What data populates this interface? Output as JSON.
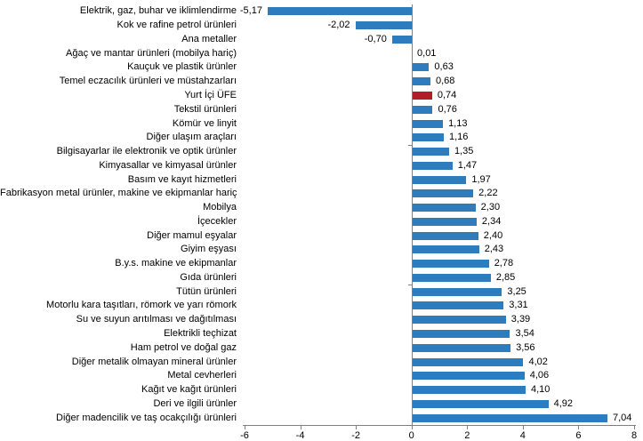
{
  "chart_data": {
    "type": "bar",
    "orientation": "horizontal",
    "title": "",
    "xlabel": "",
    "ylabel": "",
    "xlim": [
      -6,
      8
    ],
    "x_ticks": [
      -6,
      -4,
      -2,
      0,
      2,
      4,
      6,
      8
    ],
    "x_tick_labels": [
      "-6",
      "-4",
      "-2",
      "0",
      "2",
      "4",
      "6",
      "8"
    ],
    "grid": false,
    "legend": "none",
    "bar_color": "#2d7cbd",
    "highlight_color": "#b01e28",
    "axis_color": "#808080",
    "text_color": "#000000",
    "highlight_category": "Yurt İçi ÜFE",
    "category_axis_tick_interval": 10,
    "categories": [
      "Elektrik, gaz, buhar ve iklimlendirme",
      "Kok ve rafine petrol ürünleri",
      "Ana metaller",
      "Ağaç ve mantar ürünleri (mobilya hariç)",
      "Kauçuk ve plastik ürünler",
      "Temel eczacılık ürünleri ve müstahzarları",
      "Yurt İçi ÜFE",
      "Tekstil ürünleri",
      "Kömür ve linyit",
      "Diğer ulaşım araçları",
      "Bilgisayarlar ile elektronik ve optik ürünler",
      "Kimyasallar ve kimyasal ürünler",
      "Basım ve kayıt hizmetleri",
      "Fabrikasyon metal ürünler, makine ve ekipmanlar hariç",
      "Mobilya",
      "İçecekler",
      "Diğer mamul eşyalar",
      "Giyim eşyası",
      "B.y.s. makine ve ekipmanlar",
      "Gıda ürünleri",
      "Tütün ürünleri",
      "Motorlu kara taşıtları, römork ve yarı römork",
      "Su ve suyun arıtılması ve dağıtılması",
      "Elektrikli teçhizat",
      "Ham petrol ve doğal gaz",
      "Diğer metalik olmayan mineral ürünler",
      "Metal cevherleri",
      "Kağıt ve kağıt ürünleri",
      "Deri ve ilgili ürünler",
      "Diğer madencilik ve taş ocakçılığı ürünleri"
    ],
    "values": [
      -5.17,
      -2.02,
      -0.7,
      0.01,
      0.63,
      0.68,
      0.74,
      0.76,
      1.13,
      1.16,
      1.35,
      1.47,
      1.97,
      2.22,
      2.3,
      2.34,
      2.4,
      2.43,
      2.78,
      2.85,
      3.25,
      3.31,
      3.39,
      3.54,
      3.56,
      4.02,
      4.06,
      4.1,
      4.92,
      7.04
    ],
    "value_labels": [
      "-5,17",
      "-2,02",
      "-0,70",
      "0,01",
      "0,63",
      "0,68",
      "0,74",
      "0,76",
      "1,13",
      "1,16",
      "1,35",
      "1,47",
      "1,97",
      "2,22",
      "2,30",
      "2,34",
      "2,40",
      "2,43",
      "2,78",
      "2,85",
      "3,25",
      "3,31",
      "3,39",
      "3,54",
      "3,56",
      "4,02",
      "4,06",
      "4,10",
      "4,92",
      "7,04"
    ]
  }
}
